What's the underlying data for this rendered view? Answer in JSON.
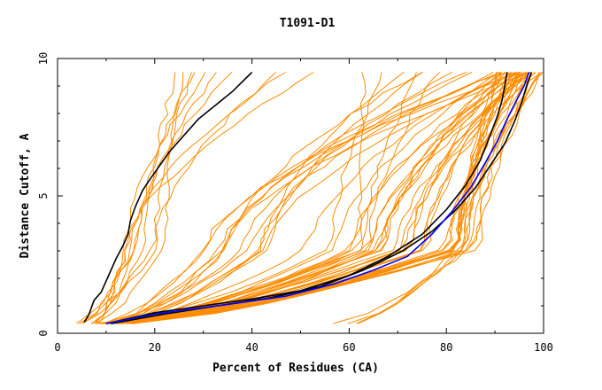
{
  "chart_data": {
    "type": "line",
    "title": "T1091-D1",
    "xlabel": "Percent of Residues (CA)",
    "ylabel": "Distance Cutoff, A",
    "xlim": [
      0,
      100
    ],
    "ylim": [
      0,
      10
    ],
    "x_ticks": [
      0,
      20,
      40,
      60,
      80,
      100
    ],
    "x_tick_labels": [
      "0",
      "20",
      "40",
      "60",
      "80",
      "100"
    ],
    "y_ticks": [
      0,
      5,
      10
    ],
    "y_tick_labels": [
      "0",
      "5",
      "10"
    ],
    "grid": false,
    "legend": "none",
    "colors": {
      "bundle": "#ff8c00",
      "highlight_black": "#000000",
      "highlight_blue": "#0000ff"
    },
    "series": [
      {
        "color": "#000000",
        "x": [
          5.5,
          6.5,
          7.5,
          9.0,
          10.0,
          11.0,
          12.0,
          13.5,
          14.5,
          15.0,
          16.0,
          17.5,
          19.0,
          21.0,
          23.0,
          26.0,
          29.0,
          32.5,
          36.0,
          40.0
        ],
        "y": [
          0.4,
          0.7,
          1.2,
          1.5,
          1.9,
          2.3,
          2.7,
          3.2,
          3.6,
          4.1,
          4.6,
          5.2,
          5.6,
          6.1,
          6.6,
          7.2,
          7.8,
          8.3,
          8.8,
          9.5
        ]
      },
      {
        "color": "#000000",
        "x": [
          10,
          20,
          30,
          40,
          50,
          60,
          68,
          75,
          80,
          84,
          87,
          89,
          90.5,
          91.5,
          92,
          92.5
        ],
        "y": [
          0.35,
          0.75,
          1.0,
          1.25,
          1.55,
          2.1,
          2.8,
          3.6,
          4.5,
          5.4,
          6.3,
          7.2,
          7.9,
          8.5,
          9.0,
          9.5
        ]
      },
      {
        "color": "#000000",
        "x": [
          11,
          22,
          33,
          44,
          54,
          63,
          71,
          77,
          82,
          86,
          89,
          92,
          94,
          95.5,
          96.5,
          97.5
        ],
        "y": [
          0.35,
          0.7,
          1.0,
          1.3,
          1.7,
          2.3,
          3.0,
          3.7,
          4.5,
          5.3,
          6.1,
          6.9,
          7.7,
          8.4,
          9.0,
          9.5
        ]
      },
      {
        "color": "#0000ff",
        "x": [
          10,
          20,
          35,
          47,
          57,
          65,
          72,
          77,
          81,
          85,
          88,
          90.5,
          92.5,
          94.5,
          96,
          97
        ],
        "y": [
          0.35,
          0.7,
          1.05,
          1.35,
          1.8,
          2.3,
          2.8,
          3.6,
          4.4,
          5.3,
          6.2,
          7.0,
          7.8,
          8.5,
          9.0,
          9.5
        ]
      }
    ],
    "bundle": {
      "families": [
        {
          "count": 10,
          "x0": [
            4.0,
            8.5
          ],
          "mid": [
            10,
            22
          ],
          "end": [
            20,
            55
          ]
        },
        {
          "count": 18,
          "x0": [
            8.0,
            14.0
          ],
          "mid": [
            30,
            65
          ],
          "end": [
            60,
            99
          ]
        },
        {
          "count": 32,
          "x0": [
            9.0,
            16.0
          ],
          "mid": [
            60,
            88
          ],
          "end": [
            90,
            99.5
          ]
        },
        {
          "count": 4,
          "x0": [
            55.0,
            62.0
          ],
          "mid": [
            82,
            92
          ],
          "end": [
            95,
            100
          ]
        }
      ],
      "y_start": 0.35,
      "y_end": 9.5
    }
  }
}
